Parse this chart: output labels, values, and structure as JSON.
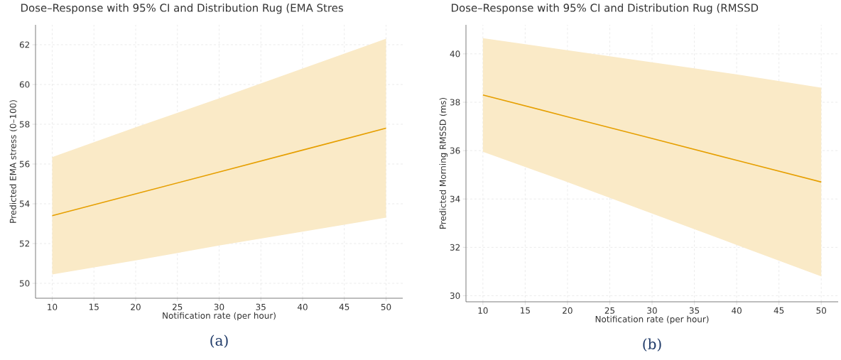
{
  "chart_data": [
    {
      "type": "line",
      "title": "Dose–Response with 95% CI and Distribution Rug (EMA Stres",
      "xlabel": "Notification rate (per hour)",
      "ylabel": "Predicted EMA stress (0–100)",
      "x": [
        10,
        20,
        30,
        40,
        50
      ],
      "series": [
        {
          "color": "#e69f00",
          "values": [
            53.4,
            54.5,
            55.6,
            56.7,
            57.8
          ],
          "lower": [
            50.45,
            51.15,
            51.9,
            52.6,
            53.3
          ],
          "upper": [
            56.35,
            57.85,
            59.3,
            60.8,
            62.3
          ]
        }
      ],
      "xlim": [
        8,
        52
      ],
      "ylim": [
        49.25,
        63.0
      ],
      "xticks": [
        10,
        15,
        20,
        25,
        30,
        35,
        40,
        45,
        50
      ],
      "yticks": [
        50,
        52,
        54,
        56,
        58,
        60,
        62
      ],
      "grid": true,
      "annotations": [
        "(a)"
      ]
    },
    {
      "type": "line",
      "title": "Dose–Response with 95% CI and Distribution Rug (RMSSD",
      "xlabel": "Notification rate (per hour)",
      "ylabel": "Predicted Morning RMSSD (ms)",
      "x": [
        10,
        20,
        30,
        40,
        50
      ],
      "series": [
        {
          "color": "#e69f00",
          "values": [
            38.3,
            37.4,
            36.5,
            35.6,
            34.7
          ],
          "lower": [
            35.95,
            34.7,
            33.4,
            32.1,
            30.8
          ],
          "upper": [
            40.65,
            40.15,
            39.65,
            39.15,
            38.6
          ]
        }
      ],
      "xlim": [
        8,
        52
      ],
      "ylim": [
        29.75,
        41.2
      ],
      "xticks": [
        10,
        15,
        20,
        25,
        30,
        35,
        40,
        45,
        50
      ],
      "yticks": [
        30,
        32,
        34,
        36,
        38,
        40
      ],
      "grid": true,
      "annotations": [
        "(b)"
      ]
    }
  ]
}
